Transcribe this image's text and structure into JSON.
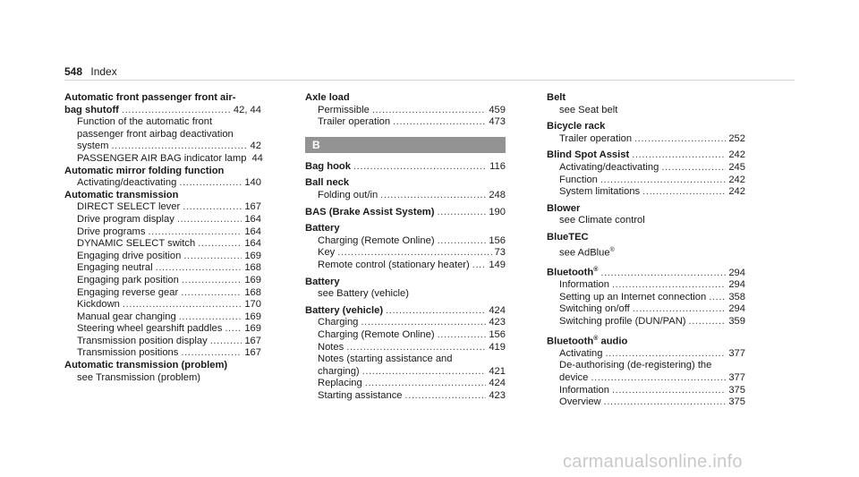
{
  "page": {
    "number": "548",
    "title": "Index"
  },
  "watermark": "carmanualsonline.info",
  "col1": {
    "auto_airbag": {
      "line1": "Automatic front passenger front air-",
      "line2": "bag shutoff",
      "page": "42, 44",
      "fn1": "Function of the automatic front",
      "fn2": "passenger front airbag deactivation",
      "fn3": "system",
      "fn_page": "42",
      "lamp": "PASSENGER AIR BAG indicator lamp",
      "lamp_page": "44"
    },
    "mirror": {
      "title": "Automatic mirror folding function",
      "sub": "Activating/deactivating",
      "page": "140"
    },
    "transmission": {
      "title": "Automatic transmission",
      "items": [
        {
          "label": "DIRECT SELECT lever",
          "page": "167"
        },
        {
          "label": "Drive program display",
          "page": "164"
        },
        {
          "label": "Drive programs",
          "page": "164"
        },
        {
          "label": "DYNAMIC SELECT switch",
          "page": "164"
        },
        {
          "label": "Engaging drive position",
          "page": "169"
        },
        {
          "label": "Engaging neutral",
          "page": "168"
        },
        {
          "label": "Engaging park position",
          "page": "169"
        },
        {
          "label": "Engaging reverse gear",
          "page": "168"
        },
        {
          "label": "Kickdown",
          "page": "170"
        },
        {
          "label": "Manual gear changing",
          "page": "169"
        },
        {
          "label": "Steering wheel gearshift paddles",
          "page": "169"
        },
        {
          "label": "Transmission position display",
          "page": "167"
        },
        {
          "label": "Transmission positions",
          "page": "167"
        }
      ]
    },
    "trans_problem": {
      "title": "Automatic transmission (problem)",
      "see": "see Transmission (problem)"
    }
  },
  "col2": {
    "axle": {
      "title": "Axle load",
      "items": [
        {
          "label": "Permissible",
          "page": "459"
        },
        {
          "label": "Trailer operation",
          "page": "473"
        }
      ]
    },
    "section_letter": "B",
    "bag_hook": {
      "title": "Bag hook",
      "page": "116"
    },
    "ball_neck": {
      "title": "Ball neck",
      "sub": "Folding out/in",
      "page": "248"
    },
    "bas": {
      "title": "BAS (Brake Assist System)",
      "page": "190"
    },
    "battery": {
      "title": "Battery",
      "items": [
        {
          "label": "Charging (Remote Online)",
          "page": "156"
        },
        {
          "label": "Key",
          "page": "73"
        },
        {
          "label": "Remote control (stationary heater)",
          "page": "149"
        }
      ]
    },
    "battery2": {
      "title": "Battery",
      "see": "see Battery (vehicle)"
    },
    "battery_vehicle": {
      "title": "Battery (vehicle)",
      "page": "424",
      "items": [
        {
          "label": "Charging",
          "page": "423"
        },
        {
          "label": "Charging (Remote Online)",
          "page": "156"
        },
        {
          "label": "Notes",
          "page": "419"
        }
      ],
      "notes_l1": "Notes (starting assistance and",
      "notes_l2": "charging)",
      "notes_page": "421",
      "items2": [
        {
          "label": "Replacing",
          "page": "424"
        },
        {
          "label": "Starting assistance",
          "page": "423"
        }
      ]
    }
  },
  "col3": {
    "belt": {
      "title": "Belt",
      "see": "see Seat belt"
    },
    "bicycle": {
      "title": "Bicycle rack",
      "sub": "Trailer operation",
      "page": "252"
    },
    "blind": {
      "title": "Blind Spot Assist",
      "page": "242",
      "items": [
        {
          "label": "Activating/deactivating",
          "page": "245"
        },
        {
          "label": "Function",
          "page": "242"
        },
        {
          "label": "System limitations",
          "page": "242"
        }
      ]
    },
    "blower": {
      "title": "Blower",
      "see": "see Climate control"
    },
    "bluetec": {
      "title": "BlueTEC",
      "see": "see AdBlue",
      "reg": "®"
    },
    "bluetooth": {
      "title": "Bluetooth",
      "reg": "®",
      "page": "294",
      "items": [
        {
          "label": "Information",
          "page": "294"
        },
        {
          "label": "Setting up an Internet connection",
          "page": "358"
        },
        {
          "label": "Switching on/off",
          "page": "294"
        },
        {
          "label": "Switching profile (DUN/PAN)",
          "page": "359"
        }
      ]
    },
    "bt_audio": {
      "title": "Bluetooth",
      "reg": "®",
      "suffix": " audio",
      "activating": "Activating",
      "activating_page": "377",
      "deauth_l1": "De-authorising (de-registering) the",
      "deauth_l2": "device",
      "deauth_page": "377",
      "items": [
        {
          "label": "Information",
          "page": "375"
        },
        {
          "label": "Overview",
          "page": "375"
        }
      ]
    }
  }
}
